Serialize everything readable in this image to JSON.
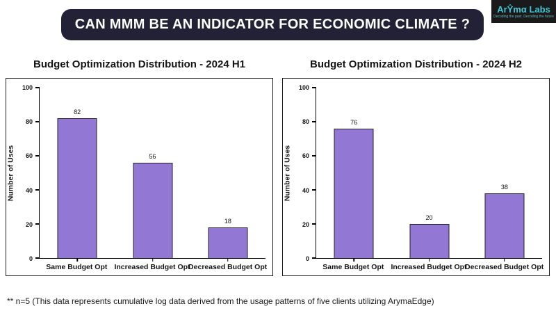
{
  "header": {
    "title": "CAN MMM BE AN INDICATOR FOR ECONOMIC CLIMATE ?"
  },
  "logo": {
    "name": "ArŶmα Labs",
    "tagline": "Decoding the past. Decoding the future"
  },
  "footnote": "** n=5 (This data represents cumulative log data derived from the usage patterns of five clients utilizing ArymaEdge)",
  "colors": {
    "bar_fill": "#9377D4",
    "bar_edge": "#222222",
    "header_bg": "#232135",
    "logo_text": "#3EC8D6",
    "panel_border": "#1a1a1a"
  },
  "chart_data": [
    {
      "type": "bar",
      "title": "Budget Optimization Distribution - 2024 H1",
      "ylabel": "Number of Uses",
      "xlabel": "",
      "categories": [
        "Same Budget Opt",
        "Increased Budget Opt",
        "Decreased Budget Opt"
      ],
      "values": [
        82,
        56,
        18
      ],
      "ylim": [
        0,
        100
      ],
      "yticks": [
        0,
        20,
        40,
        60,
        80,
        100
      ],
      "grid": false,
      "legend": false
    },
    {
      "type": "bar",
      "title": "Budget Optimization Distribution - 2024 H2",
      "ylabel": "Number of Uses",
      "xlabel": "",
      "categories": [
        "Same Budget Opt",
        "Increased Budget Opt",
        "Decreased Budget Opt"
      ],
      "values": [
        76,
        20,
        38
      ],
      "ylim": [
        0,
        100
      ],
      "yticks": [
        0,
        20,
        40,
        60,
        80,
        100
      ],
      "grid": false,
      "legend": false
    }
  ]
}
